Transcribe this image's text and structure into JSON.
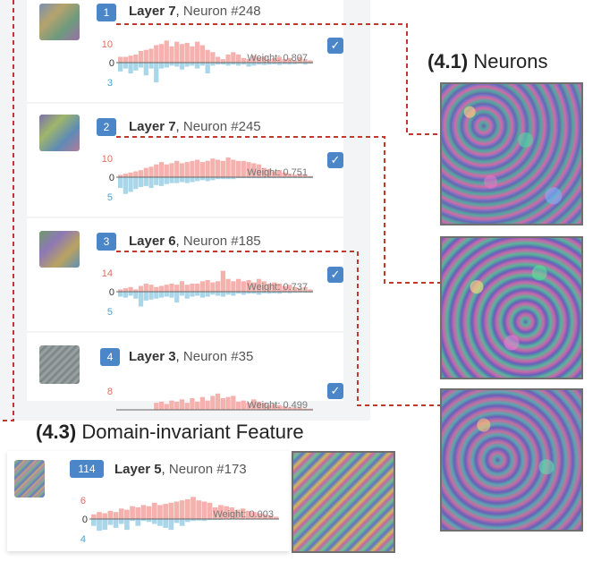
{
  "neuron_list": [
    {
      "rank": "1",
      "layer": "Layer 7",
      "neuron": "Neuron #248",
      "weight": "Weight: 0.807",
      "y_top": "10",
      "y_zero": "0",
      "y_bottom": "3",
      "checked": true,
      "pos": [
        0.25,
        0.25,
        0.3,
        0.35,
        0.5,
        0.55,
        0.6,
        0.75,
        0.8,
        0.95,
        0.7,
        0.9,
        0.8,
        0.85,
        0.7,
        0.9,
        0.75,
        0.55,
        0.45,
        0.25,
        0.15,
        0.35,
        0.45,
        0.35,
        0.2,
        0.15,
        0.3,
        0.2,
        0.25,
        0.15,
        0.2,
        0.25,
        0.15,
        0.2,
        0.1,
        0.25,
        0.15,
        0.1
      ],
      "neg": [
        0.45,
        0.3,
        0.55,
        0.4,
        0.25,
        0.65,
        0.3,
        1.0,
        0.3,
        0.25,
        0.15,
        0.2,
        0.35,
        0.2,
        0.15,
        0.3,
        0.15,
        0.55,
        0.15,
        0.1,
        0.1,
        0.15,
        0.1,
        0.15,
        0.1,
        0.2,
        0.15,
        0.1,
        0.12,
        0.1,
        0.08,
        0.12,
        0.08,
        0.1,
        0.08,
        0.05,
        0.1,
        0.05
      ]
    },
    {
      "rank": "2",
      "layer": "Layer 7",
      "neuron": "Neuron #245",
      "weight": "Weight: 0.751",
      "y_top": "10",
      "y_zero": "0",
      "y_bottom": "5",
      "checked": true,
      "pos": [
        0.1,
        0.15,
        0.2,
        0.25,
        0.3,
        0.4,
        0.45,
        0.55,
        0.65,
        0.55,
        0.6,
        0.7,
        0.6,
        0.65,
        0.7,
        0.75,
        0.65,
        0.7,
        0.8,
        0.75,
        0.7,
        0.85,
        0.75,
        0.7,
        0.7,
        0.65,
        0.6,
        0.55,
        0.4,
        0.35,
        0.25,
        0.3,
        0.2,
        0.15,
        0.1,
        0.15,
        0.1,
        0.05
      ],
      "neg": [
        0.55,
        0.85,
        0.75,
        0.6,
        0.5,
        0.45,
        0.55,
        0.4,
        0.45,
        0.35,
        0.3,
        0.3,
        0.25,
        0.3,
        0.25,
        0.2,
        0.15,
        0.2,
        0.15,
        0.1,
        0.1,
        0.1,
        0.1,
        0.05,
        0.05,
        0.05,
        0.05,
        0.05,
        0.05,
        0.05,
        0.05,
        0.05,
        0.05,
        0.05,
        0.05,
        0.05,
        0.05,
        0.05
      ]
    },
    {
      "rank": "3",
      "layer": "Layer 6",
      "neuron": "Neuron #185",
      "weight": "Weight: 0.737",
      "y_top": "14",
      "y_zero": "0",
      "y_bottom": "5",
      "checked": true,
      "pos": [
        0.1,
        0.15,
        0.2,
        0.1,
        0.25,
        0.35,
        0.3,
        0.2,
        0.25,
        0.3,
        0.35,
        0.3,
        0.45,
        0.3,
        0.35,
        0.35,
        0.45,
        0.5,
        0.4,
        0.45,
        0.9,
        0.55,
        0.45,
        0.55,
        0.45,
        0.5,
        0.4,
        0.55,
        0.45,
        0.35,
        0.4,
        0.35,
        0.25,
        0.3,
        0.2,
        0.15,
        0.2,
        0.1
      ],
      "neg": [
        0.25,
        0.3,
        0.2,
        0.35,
        0.75,
        0.45,
        0.4,
        0.35,
        0.3,
        0.25,
        0.3,
        0.55,
        0.2,
        0.35,
        0.25,
        0.2,
        0.3,
        0.25,
        0.15,
        0.2,
        0.25,
        0.15,
        0.2,
        0.1,
        0.15,
        0.1,
        0.1,
        0.15,
        0.08,
        0.1,
        0.08,
        0.1,
        0.05,
        0.08,
        0.05,
        0.05,
        0.05,
        0.05
      ]
    },
    {
      "rank": "4",
      "layer": "Layer 3",
      "neuron": "Neuron #35",
      "weight": "Weight: 0.499",
      "y_top": "8",
      "y_zero": "",
      "y_bottom": "",
      "checked": true,
      "pos": [
        0.0,
        0.0,
        0.0,
        0.0,
        0.0,
        0.0,
        0.0,
        0.3,
        0.35,
        0.25,
        0.4,
        0.35,
        0.45,
        0.3,
        0.5,
        0.35,
        0.55,
        0.4,
        0.6,
        0.7,
        0.5,
        0.55,
        0.6,
        0.35,
        0.4,
        0.3,
        0.45,
        0.35,
        0.3,
        0.2,
        0.25,
        0.2,
        0.15,
        0.1,
        0.1,
        0.1,
        0.05,
        0.05
      ],
      "neg": []
    }
  ],
  "domain_invariant": {
    "heading_prefix": "(4.3)",
    "heading_text": "Domain-invariant Feature",
    "rank": "114",
    "layer": "Layer 5",
    "neuron": "Neuron #173",
    "weight": "Weight: 0.003",
    "y_top": "6",
    "y_zero": "0",
    "y_bottom": "4",
    "pos": [
      0.2,
      0.3,
      0.25,
      0.35,
      0.3,
      0.45,
      0.4,
      0.55,
      0.5,
      0.6,
      0.55,
      0.7,
      0.6,
      0.65,
      0.7,
      0.75,
      0.8,
      0.85,
      0.95,
      0.8,
      0.75,
      0.7,
      0.5,
      0.6,
      0.55,
      0.5,
      0.4,
      0.45,
      0.35,
      0.3,
      0.25,
      0.2,
      0.15,
      0.1
    ],
    "neg": [
      0.35,
      0.6,
      0.55,
      0.3,
      0.45,
      0.25,
      0.55,
      0.1,
      0.35,
      0.1,
      0.15,
      0.25,
      0.35,
      0.45,
      0.55,
      0.2,
      0.35,
      0.15,
      0.1,
      0.08,
      0.1,
      0.05,
      0.05,
      0.05,
      0.03,
      0.03,
      0.03,
      0.03,
      0.03,
      0.03,
      0.03,
      0.03,
      0.03,
      0.03
    ]
  },
  "neurons_heading": {
    "prefix": "(4.1)",
    "text": "Neurons"
  },
  "colors": {
    "pos_bar": "#f4b1ad",
    "neg_bar": "#a9d6e8",
    "badge": "#4a86c8",
    "connector": "#c0392b",
    "axis_pos": "#e06a5f",
    "axis_neg": "#4aa3cc"
  }
}
